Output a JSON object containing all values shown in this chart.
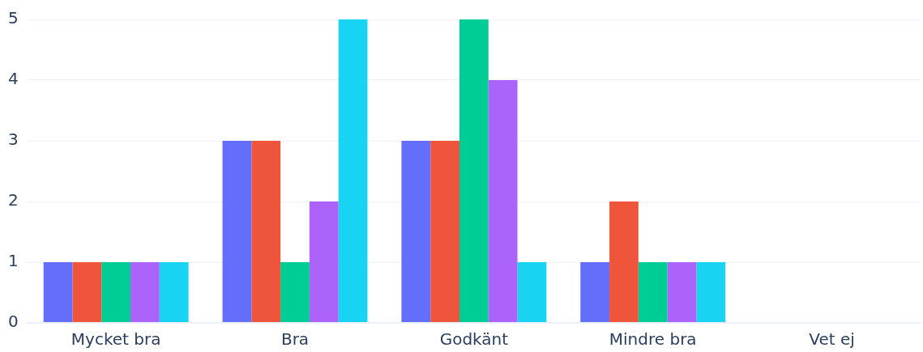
{
  "chart_data": {
    "type": "bar",
    "categories": [
      "Mycket bra",
      "Bra",
      "Godkänt",
      "Mindre bra",
      "Vet ej"
    ],
    "series": [
      {
        "color": "#636efa",
        "values": [
          1,
          3,
          3,
          1,
          0
        ]
      },
      {
        "color": "#ef553b",
        "values": [
          1,
          3,
          3,
          2,
          0
        ]
      },
      {
        "color": "#00cc96",
        "values": [
          1,
          1,
          5,
          1,
          0
        ]
      },
      {
        "color": "#ab63fa",
        "values": [
          1,
          2,
          4,
          1,
          0
        ]
      },
      {
        "color": "#19d3f3",
        "values": [
          1,
          5,
          1,
          1,
          0
        ]
      }
    ],
    "ylim": [
      0,
      5
    ],
    "yticks": [
      0,
      1,
      2,
      3,
      4,
      5
    ],
    "grid": "y",
    "legend": false
  }
}
